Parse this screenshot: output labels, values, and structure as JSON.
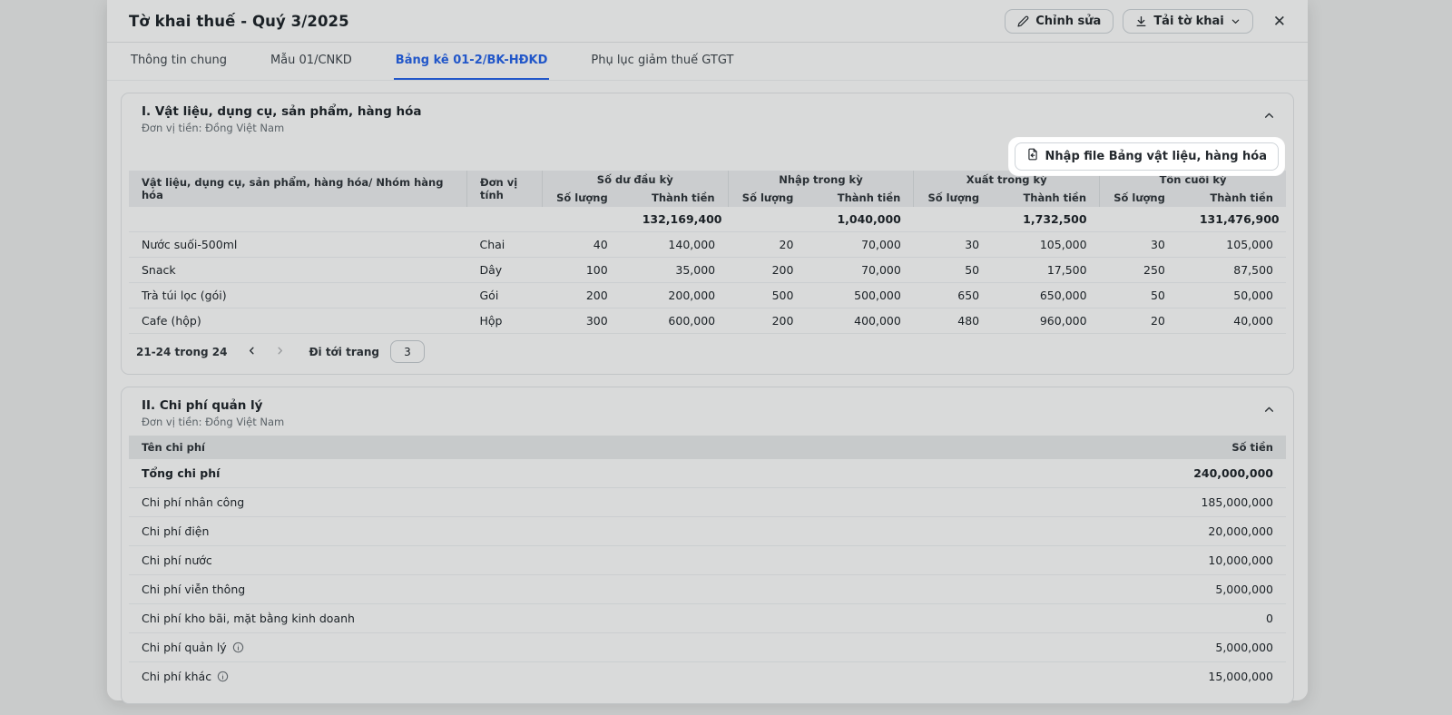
{
  "colors": {
    "accent": "#2563eb",
    "spotlight_bg": "#ffffff",
    "overlay": "rgba(20,22,26,0.16)"
  },
  "icons": {
    "close": "✕",
    "edit": "pencil-icon",
    "download": "download-icon",
    "collapse": "chevron-up-icon",
    "info": "info-icon",
    "import": "file-import-icon"
  },
  "header": {
    "title": "Tờ khai thuế - Quý 3/2025",
    "edit_button": "Chỉnh sửa",
    "download_button": "Tải tờ khai"
  },
  "tabs": [
    {
      "label": "Thông tin chung",
      "active": false
    },
    {
      "label": "Mẫu 01/CNKD",
      "active": false
    },
    {
      "label": "Bảng kê 01-2/BK-HĐKD",
      "active": true
    },
    {
      "label": "Phụ lục giảm thuế GTGT",
      "active": false
    }
  ],
  "section1": {
    "title": "I. Vật liệu, dụng cụ, sản phẩm, hàng hóa",
    "currency_note": "Đơn vị tiền: Đồng Việt Nam",
    "import_button": "Nhập file Bảng vật liệu, hàng hóa",
    "table": {
      "col_item": "Vật liệu, dụng cụ, sản phẩm, hàng hóa/ Nhóm hàng hóa",
      "col_unit": "Đơn vị tính",
      "groups": [
        "Số dư đầu kỳ",
        "Nhập trong kỳ",
        "Xuất trong kỳ",
        "Tồn cuối kỳ"
      ],
      "sub_qty": "Số lượng",
      "sub_amount": "Thành tiền",
      "summary_amounts": [
        "132,169,400",
        "1,040,000",
        "1,732,500",
        "131,476,900"
      ],
      "rows": [
        {
          "name": "Nước suối-500ml",
          "unit": "Chai",
          "values": [
            "40",
            "140,000",
            "20",
            "70,000",
            "30",
            "105,000",
            "30",
            "105,000"
          ]
        },
        {
          "name": "Snack",
          "unit": "Dây",
          "values": [
            "100",
            "35,000",
            "200",
            "70,000",
            "50",
            "17,500",
            "250",
            "87,500"
          ]
        },
        {
          "name": "Trà túi lọc (gói)",
          "unit": "Gói",
          "values": [
            "200",
            "200,000",
            "500",
            "500,000",
            "650",
            "650,000",
            "50",
            "50,000"
          ]
        },
        {
          "name": "Cafe (hộp)",
          "unit": "Hộp",
          "values": [
            "300",
            "600,000",
            "200",
            "400,000",
            "480",
            "960,000",
            "20",
            "40,000"
          ]
        }
      ]
    },
    "pagination": {
      "range_text": "21-24 trong 24",
      "goto_label": "Đi tới trang",
      "page_value": "3"
    }
  },
  "section2": {
    "title": "II. Chi phí quản lý",
    "currency_note": "Đơn vị tiền: Đồng Việt Nam",
    "col_name": "Tên chi phí",
    "col_amount": "Số tiền",
    "rows": [
      {
        "name": "Tổng chi phí",
        "amount": "240,000,000",
        "bold": true,
        "info": false
      },
      {
        "name": "Chi phí nhân công",
        "amount": "185,000,000",
        "bold": false,
        "info": false
      },
      {
        "name": "Chi phí điện",
        "amount": "20,000,000",
        "bold": false,
        "info": false
      },
      {
        "name": "Chi phí nước",
        "amount": "10,000,000",
        "bold": false,
        "info": false
      },
      {
        "name": "Chi phí viễn thông",
        "amount": "5,000,000",
        "bold": false,
        "info": false
      },
      {
        "name": "Chi phí kho bãi, mặt bằng kinh doanh",
        "amount": "0",
        "bold": false,
        "info": false
      },
      {
        "name": "Chi phí quản lý",
        "amount": "5,000,000",
        "bold": false,
        "info": true
      },
      {
        "name": "Chi phí khác",
        "amount": "15,000,000",
        "bold": false,
        "info": true
      }
    ]
  }
}
